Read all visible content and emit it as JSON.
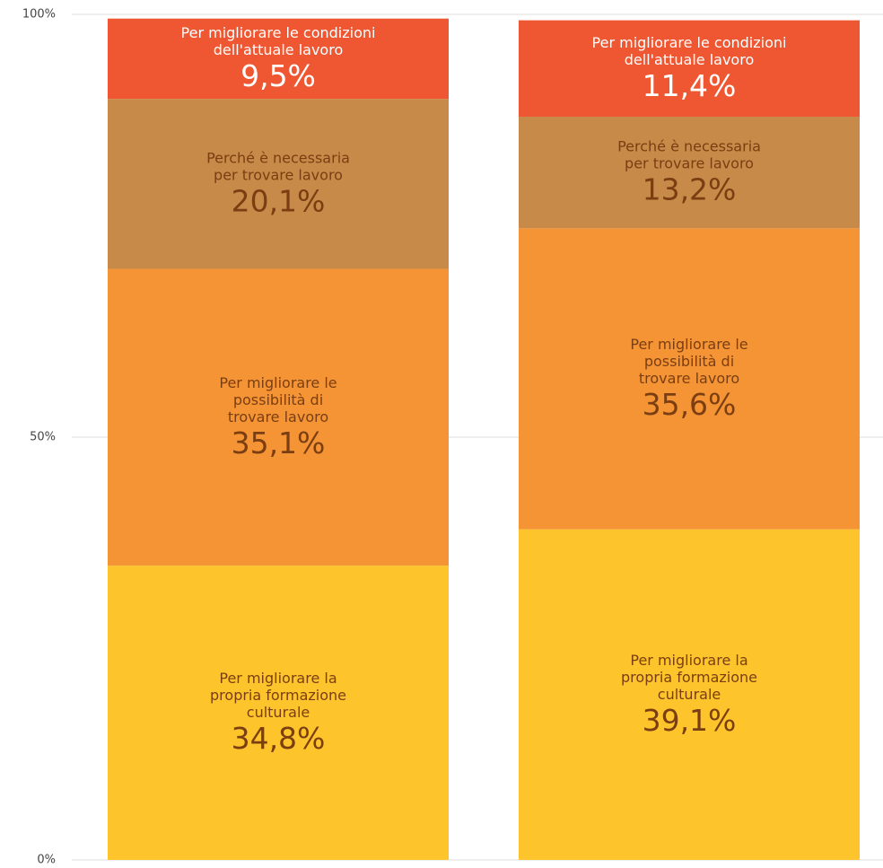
{
  "chart_data": {
    "type": "stacked_bar",
    "categories": [
      null,
      null
    ],
    "ylim": [
      0,
      100
    ],
    "yticks": [
      {
        "value": 0,
        "label": "0%"
      },
      {
        "value": 50,
        "label": "50%"
      },
      {
        "value": 100,
        "label": "100%"
      }
    ],
    "grid": true,
    "series": [
      {
        "name": "Per migliorare la propria formazione culturale",
        "color": "#fdc52b",
        "values": [
          34.8,
          39.1
        ],
        "value_labels": [
          "34,8%",
          "39,1%"
        ]
      },
      {
        "name": "Per migliorare le possibilità di trovare lavoro",
        "color": "#f59434",
        "values": [
          35.1,
          35.6
        ],
        "value_labels": [
          "35,1%",
          "35,6%"
        ]
      },
      {
        "name": "Perché è necessaria per trovare lavoro",
        "color": "#c88a48",
        "values": [
          20.1,
          13.2
        ],
        "value_labels": [
          "20,1%",
          "13,2%"
        ]
      },
      {
        "name": "Per migliorare le condizioni dell'attuale lavoro",
        "color": "#ee5731",
        "values": [
          9.5,
          11.4
        ],
        "value_labels": [
          "9,5%",
          "11,4%"
        ]
      }
    ]
  }
}
